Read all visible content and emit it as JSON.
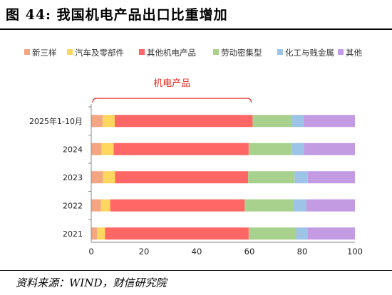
{
  "figure": {
    "title": "图 44:  我国机电产品出口比重增加",
    "source": "资料来源：WIND，财信研究院"
  },
  "chart_data": {
    "type": "bar",
    "orientation": "horizontal",
    "stacked": true,
    "categories": [
      "2025年1-10月",
      "2024",
      "2023",
      "2022",
      "2021"
    ],
    "series": [
      {
        "name": "新三样",
        "color": "#f4a582",
        "values": [
          4.3,
          3.9,
          4.4,
          3.7,
          2.2
        ]
      },
      {
        "name": "汽车及零部件",
        "color": "#ffd75e",
        "values": [
          4.6,
          4.6,
          4.6,
          3.5,
          3.0
        ]
      },
      {
        "name": "其他机电产品",
        "color": "#ff6666",
        "values": [
          52.3,
          51.2,
          50.5,
          51.0,
          54.5
        ]
      },
      {
        "name": "劳动密集型",
        "color": "#a9d18e",
        "values": [
          15.0,
          16.3,
          17.6,
          18.3,
          18.0
        ]
      },
      {
        "name": "化工与贱金属",
        "color": "#9dc3e6",
        "values": [
          4.3,
          4.7,
          5.0,
          5.0,
          4.3
        ]
      },
      {
        "name": "其他",
        "color": "#c39be2",
        "values": [
          19.5,
          19.3,
          17.9,
          18.5,
          18.0
        ]
      }
    ],
    "xlim": [
      0,
      100
    ],
    "xticks": [
      0,
      20,
      40,
      60,
      80,
      100
    ],
    "legend_position": "top",
    "grid": false,
    "annotation": {
      "text": "机电产品",
      "spans_series": [
        "新三样",
        "汽车及零部件",
        "其他机电产品"
      ],
      "color": "#e8251a"
    }
  }
}
